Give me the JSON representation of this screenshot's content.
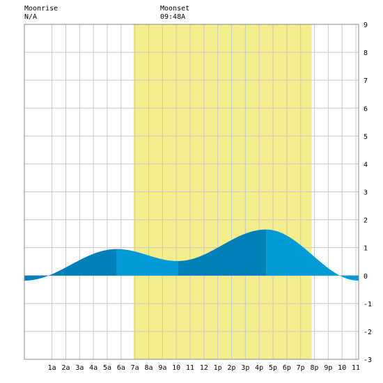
{
  "header": {
    "moonrise_label": "Moonrise",
    "moonrise_value": "N/A",
    "moonset_label": "Moonset",
    "moonset_value": "09:48A"
  },
  "chart_data": {
    "type": "area",
    "title": "",
    "xlabel": "",
    "ylabel": "",
    "xlim": [
      -1,
      23.2
    ],
    "ylim": [
      -3,
      9
    ],
    "grid": true,
    "daylight": {
      "start": 6.9,
      "end": 19.8,
      "color": "#f5ee8c"
    },
    "x_ticks": [
      {
        "x": 1,
        "label": "1a"
      },
      {
        "x": 2,
        "label": "2a"
      },
      {
        "x": 3,
        "label": "3a"
      },
      {
        "x": 4,
        "label": "4a"
      },
      {
        "x": 5,
        "label": "5a"
      },
      {
        "x": 6,
        "label": "6a"
      },
      {
        "x": 7,
        "label": "7a"
      },
      {
        "x": 8,
        "label": "8a"
      },
      {
        "x": 9,
        "label": "9a"
      },
      {
        "x": 10,
        "label": "10"
      },
      {
        "x": 11,
        "label": "11"
      },
      {
        "x": 12,
        "label": "12"
      },
      {
        "x": 13,
        "label": "1p"
      },
      {
        "x": 14,
        "label": "2p"
      },
      {
        "x": 15,
        "label": "3p"
      },
      {
        "x": 16,
        "label": "4p"
      },
      {
        "x": 17,
        "label": "5p"
      },
      {
        "x": 18,
        "label": "6p"
      },
      {
        "x": 19,
        "label": "7p"
      },
      {
        "x": 20,
        "label": "8p"
      },
      {
        "x": 21,
        "label": "9p"
      },
      {
        "x": 22,
        "label": "10"
      },
      {
        "x": 23,
        "label": "11"
      }
    ],
    "y_ticks": [
      {
        "y": 9,
        "label": "9"
      },
      {
        "y": 8,
        "label": "8"
      },
      {
        "y": 7,
        "label": "7"
      },
      {
        "y": 6,
        "label": "6"
      },
      {
        "y": 5,
        "label": "5"
      },
      {
        "y": 4,
        "label": "4"
      },
      {
        "y": 3,
        "label": "3"
      },
      {
        "y": 2,
        "label": "2"
      },
      {
        "y": 1,
        "label": "1"
      },
      {
        "y": 0,
        "label": "0"
      },
      {
        "y": -1,
        "label": "-1"
      },
      {
        "y": -2,
        "label": "-2"
      },
      {
        "y": -3,
        "label": "-3"
      }
    ],
    "tide_extremes": [
      {
        "x": -1,
        "y": -0.18
      },
      {
        "x": 5.7,
        "y": 0.95
      },
      {
        "x": 10.1,
        "y": 0.52
      },
      {
        "x": 16.5,
        "y": 1.65
      },
      {
        "x": 23.2,
        "y": -0.18
      }
    ],
    "band_boundaries": [
      0.7,
      5.7,
      10.1,
      16.5,
      22.2
    ],
    "colors": {
      "dark": "#0080b8",
      "light": "#009ad6",
      "grid": "#c8c8c8",
      "axis": "#888888"
    }
  }
}
